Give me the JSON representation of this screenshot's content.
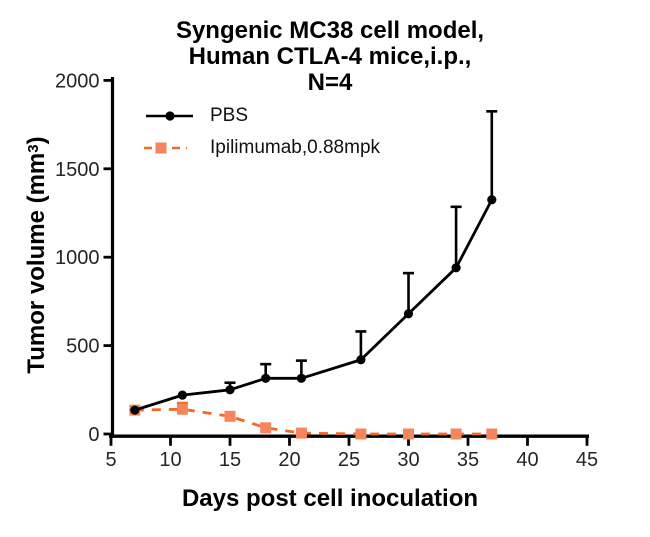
{
  "figure": {
    "title_lines": [
      "Syngenic MC38 cell model,",
      "Human CTLA-4 mice,i.p.,",
      "N=4"
    ],
    "xlabel": "Days post cell inoculation",
    "ylabel_pre": "Tumor volume (mm",
    "ylabel_sup": "3",
    "ylabel_post": ")"
  },
  "legend": [
    {
      "label": "PBS"
    },
    {
      "label": "Ipilimumab,0.88mpk"
    }
  ],
  "colors": {
    "pbs": "#000000",
    "ipilimumab_line": "#F2692B",
    "ipilimumab_marker": "#F5855C"
  },
  "chart_data": {
    "type": "line",
    "title": "Syngenic MC38 cell model, Human CTLA-4 mice,i.p., N=4",
    "xlabel": "Days post cell inoculation",
    "ylabel": "Tumor volume (mm3)",
    "xlim": [
      5,
      45
    ],
    "ylim": [
      0,
      2000
    ],
    "xticks": [
      5,
      10,
      15,
      20,
      25,
      30,
      35,
      40,
      45
    ],
    "yticks": [
      0,
      500,
      1000,
      1500,
      2000
    ],
    "grid": false,
    "legend_position": "inside-top-left",
    "x": [
      7,
      11,
      15,
      18,
      21,
      26,
      30,
      34,
      37
    ],
    "series": [
      {
        "name": "PBS",
        "marker": "circle",
        "line_style": "solid",
        "color": "#000000",
        "marker_color": "#000000",
        "values": [
          135,
          220,
          250,
          315,
          315,
          420,
          680,
          940,
          1325
        ],
        "sd_up": [
          0,
          0,
          40,
          80,
          100,
          160,
          230,
          345,
          500
        ]
      },
      {
        "name": "Ipilimumab,0.88mpk",
        "marker": "square",
        "line_style": "dashed",
        "color": "#F2692B",
        "marker_color": "#F5855C",
        "values": [
          135,
          140,
          100,
          35,
          5,
          0,
          0,
          0,
          0
        ],
        "sd_up": [
          0,
          35,
          0,
          0,
          0,
          0,
          0,
          0,
          0
        ]
      }
    ]
  }
}
